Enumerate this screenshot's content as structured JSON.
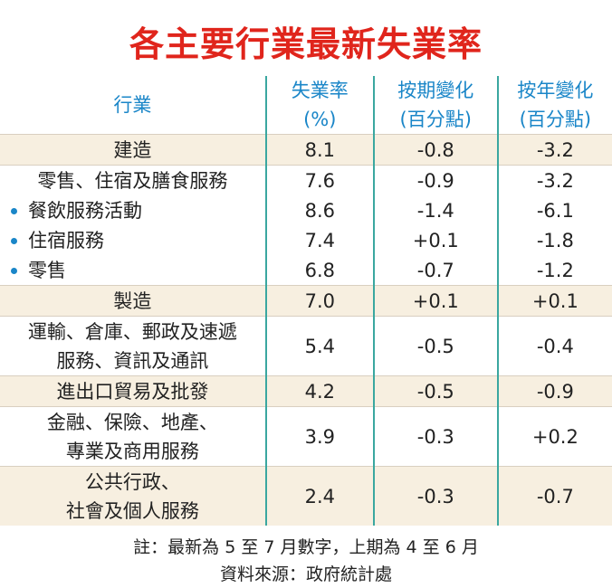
{
  "title": "各主要行業最新失業率",
  "table": {
    "headers": [
      [
        "行業"
      ],
      [
        "失業率",
        "(%)"
      ],
      [
        "按期變化",
        "(百分點)"
      ],
      [
        "按年變化",
        "(百分點)"
      ]
    ],
    "rows": [
      [
        [
          "建造"
        ],
        "8.1",
        "-0.8",
        "-3.2"
      ],
      [
        [
          "零售、住宿及膳食服務"
        ],
        "7.6",
        "-0.9",
        "-3.2"
      ],
      [
        [
          "餐飲服務活動"
        ],
        "8.6",
        "-1.4",
        "-6.1"
      ],
      [
        [
          "住宿服務"
        ],
        "7.4",
        "+0.1",
        "-1.8"
      ],
      [
        [
          "零售"
        ],
        "6.8",
        "-0.7",
        "-1.2"
      ],
      [
        [
          "製造"
        ],
        "7.0",
        "+0.1",
        "+0.1"
      ],
      [
        [
          "運輸、倉庫、郵政及速遞",
          "服務、資訊及通訊"
        ],
        "5.4",
        "-0.5",
        "-0.4"
      ],
      [
        [
          "進出口貿易及批發"
        ],
        "4.2",
        "-0.5",
        "-0.9"
      ],
      [
        [
          "金融、保險、地產、",
          "專業及商用服務"
        ],
        "3.9",
        "-0.3",
        "+0.2"
      ],
      [
        [
          "公共行政、",
          "社會及個人服務"
        ],
        "2.4",
        "-0.3",
        "-0.7"
      ]
    ]
  },
  "footer": {
    "note": "註：最新為 5 至 7 月數字，上期為 4 至 6 月",
    "source": "資料來源：政府統計處"
  }
}
